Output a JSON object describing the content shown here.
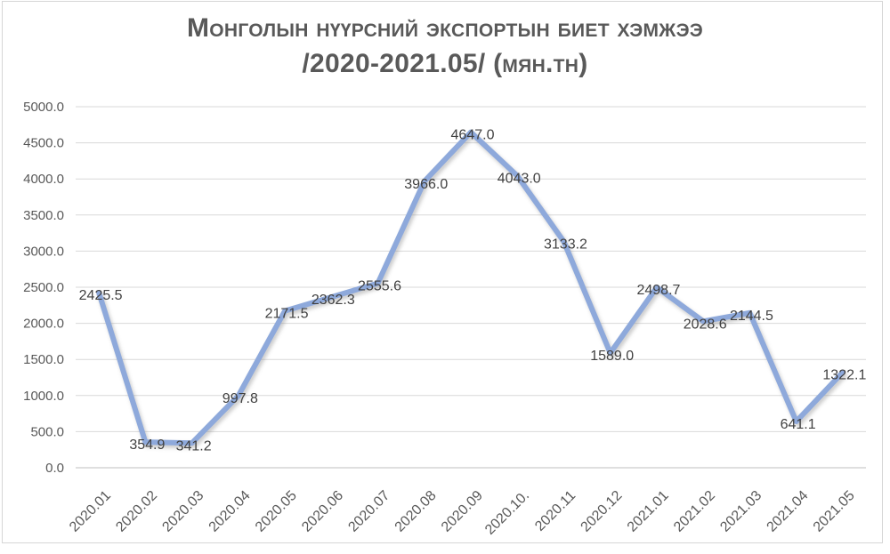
{
  "window": {
    "background": "#ffffff",
    "frame_border_color": "#d6d6d6"
  },
  "chart_data": {
    "type": "line",
    "title": "Монголын нүүрсний экспортын биет хэмжээ",
    "subtitle": "/2020-2021.05/ (мян.тн)",
    "categories": [
      "2020.01",
      "2020.02",
      "2020.03",
      "2020.04",
      "2020.05",
      "2020.06",
      "2020.07",
      "2020.08",
      "2020.09",
      "2020.10.",
      "2020.11",
      "2020.12",
      "2021.01",
      "2021.02",
      "2021.03",
      "2021.04",
      "2021.05"
    ],
    "values": [
      2425.5,
      354.9,
      341.2,
      997.8,
      2171.5,
      2362.3,
      2555.6,
      3966.0,
      4647.0,
      4043.0,
      3133.2,
      1589.0,
      2498.7,
      2028.6,
      2144.5,
      641.1,
      1322.1
    ],
    "data_label_decimals": 1,
    "ylim": [
      0,
      5000
    ],
    "ytick_step": 500,
    "ytick_decimals": 1,
    "grid": true,
    "legend": "none",
    "xlabel": "",
    "ylabel": "",
    "x_label_rotation_deg": -45,
    "colors": {
      "line": "#8EA9DB",
      "line_shadow": "#9a9a9a",
      "gridline": "#D9D9D9",
      "axis_line": "#BFBFBF",
      "tick_label": "#595959",
      "data_label": "#404040",
      "title": "#595959"
    }
  }
}
